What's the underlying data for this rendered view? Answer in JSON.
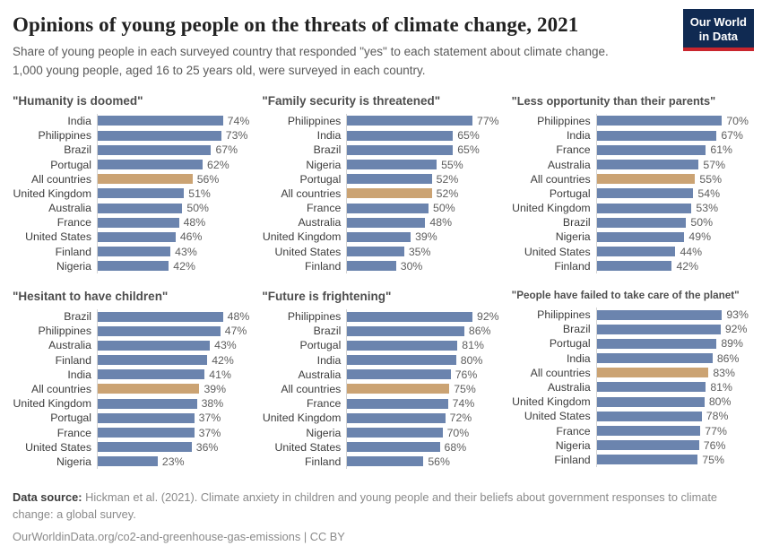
{
  "header": {
    "title": "Opinions of young people on the threats of climate change, 2021",
    "subtitle": "Share of young people in each surveyed country that responded \"yes\" to each statement about climate change. 1,000 young people, aged 16 to 25 years old, were surveyed in each country.",
    "logo": {
      "line1": "Our World",
      "line2": "in Data"
    }
  },
  "colors": {
    "bar_default": "#6b84ae",
    "bar_highlight": "#cba373",
    "logo_background": "#102a52",
    "logo_underline": "#c9252d",
    "axis_line": "#d4d4d4"
  },
  "chart_data": [
    {
      "type": "bar",
      "orientation": "horizontal",
      "title": "\"Humanity is doomed\"",
      "categories": [
        "India",
        "Philippines",
        "Brazil",
        "Portugal",
        "All countries",
        "United Kingdom",
        "Australia",
        "France",
        "United States",
        "Finland",
        "Nigeria"
      ],
      "values": [
        74,
        73,
        67,
        62,
        56,
        51,
        50,
        48,
        46,
        43,
        42
      ],
      "value_suffix": "%",
      "highlight_category": "All countries",
      "xlim": [
        0,
        74
      ],
      "grid": false,
      "legend": false
    },
    {
      "type": "bar",
      "orientation": "horizontal",
      "title": "\"Family security is threatened\"",
      "categories": [
        "Philippines",
        "India",
        "Brazil",
        "Nigeria",
        "Portugal",
        "All countries",
        "France",
        "Australia",
        "United Kingdom",
        "United States",
        "Finland"
      ],
      "values": [
        77,
        65,
        65,
        55,
        52,
        52,
        50,
        48,
        39,
        35,
        30
      ],
      "value_suffix": "%",
      "highlight_category": "All countries",
      "xlim": [
        0,
        77
      ],
      "grid": false,
      "legend": false
    },
    {
      "type": "bar",
      "orientation": "horizontal",
      "title": "\"Less opportunity than their parents\"",
      "categories": [
        "Philippines",
        "India",
        "France",
        "Australia",
        "All countries",
        "Portugal",
        "United Kingdom",
        "Brazil",
        "Nigeria",
        "United States",
        "Finland"
      ],
      "values": [
        70,
        67,
        61,
        57,
        55,
        54,
        53,
        50,
        49,
        44,
        42
      ],
      "value_suffix": "%",
      "highlight_category": "All countries",
      "xlim": [
        0,
        70
      ],
      "grid": false,
      "legend": false
    },
    {
      "type": "bar",
      "orientation": "horizontal",
      "title": "\"Hesitant to have children\"",
      "categories": [
        "Brazil",
        "Philippines",
        "Australia",
        "Finland",
        "India",
        "All countries",
        "United Kingdom",
        "Portugal",
        "France",
        "United States",
        "Nigeria"
      ],
      "values": [
        48,
        47,
        43,
        42,
        41,
        39,
        38,
        37,
        37,
        36,
        23
      ],
      "value_suffix": "%",
      "highlight_category": "All countries",
      "xlim": [
        0,
        48
      ],
      "grid": false,
      "legend": false
    },
    {
      "type": "bar",
      "orientation": "horizontal",
      "title": "\"Future is frightening\"",
      "categories": [
        "Philippines",
        "Brazil",
        "Portugal",
        "India",
        "Australia",
        "All countries",
        "France",
        "United Kingdom",
        "Nigeria",
        "United States",
        "Finland"
      ],
      "values": [
        92,
        86,
        81,
        80,
        76,
        75,
        74,
        72,
        70,
        68,
        56
      ],
      "value_suffix": "%",
      "highlight_category": "All countries",
      "xlim": [
        0,
        92
      ],
      "grid": false,
      "legend": false
    },
    {
      "type": "bar",
      "orientation": "horizontal",
      "title": "\"People have failed to take care of the planet\"",
      "categories": [
        "Philippines",
        "Brazil",
        "Portugal",
        "India",
        "All countries",
        "Australia",
        "United Kingdom",
        "United States",
        "France",
        "Nigeria",
        "Finland"
      ],
      "values": [
        93,
        92,
        89,
        86,
        83,
        81,
        80,
        78,
        77,
        76,
        75
      ],
      "value_suffix": "%",
      "highlight_category": "All countries",
      "xlim": [
        0,
        93
      ],
      "grid": false,
      "legend": false
    }
  ],
  "footer": {
    "source_label": "Data source:",
    "source_text": " Hickman et al. (2021). Climate anxiety in children and young people and their beliefs about government responses to climate change: a global survey.",
    "license_line": "OurWorldinData.org/co2-and-greenhouse-gas-emissions | CC BY"
  }
}
